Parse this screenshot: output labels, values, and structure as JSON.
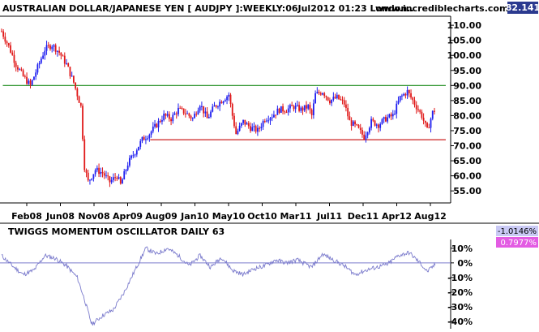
{
  "header": {
    "title": "AUSTRALIAN DOLLAR/JAPANESE YEN [ AUDJPY ]:WEEKLY:06Jul2012 01:23 London..",
    "site": "www.incrediblecharts.com",
    "last_price": "82.141"
  },
  "lower_panel": {
    "title": "TWIGGS MOMENTUM OSCILLATOR DAILY 63",
    "badge_negative": "-1.0146%",
    "badge_positive": "0.7977%"
  },
  "colors": {
    "up": "#1f1ff0",
    "down": "#e01818",
    "resistance": "#1a8a1a",
    "support": "#cc2020",
    "oscillator": "#7a7acc",
    "badge_blue": "#2b3a8f",
    "badge_lightblue": "#c9c9f5",
    "badge_pink": "#e35ce3"
  },
  "chart_data": [
    {
      "type": "candlestick",
      "title": "AUSTRALIAN DOLLAR/JAPANESE YEN [ AUDJPY ]:WEEKLY:06Jul2012 01:23 London..",
      "x_tick_labels": [
        "Feb08",
        "Jun08",
        "Nov08",
        "Apr09",
        "Aug09",
        "Jan10",
        "May10",
        "Oct10",
        "Mar11",
        "Jul11",
        "Dec11",
        "Apr12",
        "Aug12"
      ],
      "y_tick_labels": [
        "110.00",
        "105.00",
        "100.00",
        "95.00",
        "90.00",
        "85.00",
        "80.00",
        "75.00",
        "70.00",
        "65.00",
        "60.00",
        "55.00"
      ],
      "y_ticks": [
        110,
        105,
        100,
        95,
        90,
        85,
        80,
        75,
        70,
        65,
        60,
        55
      ],
      "ylim": [
        51,
        113
      ],
      "x_range_dates": [
        "2007-11-20",
        "2012-09-03"
      ],
      "last_close": 82.141,
      "horizontal_lines": [
        {
          "role": "resistance",
          "value": 90.0,
          "from": "2007-12-01",
          "to": "2012-08-15"
        },
        {
          "role": "support",
          "value": 72.0,
          "from": "2009-06-25",
          "to": "2012-08-15"
        }
      ],
      "close_path": [
        {
          "date": "2007-11-26",
          "close": 108
        },
        {
          "date": "2007-12-24",
          "close": 103
        },
        {
          "date": "2008-01-21",
          "close": 97
        },
        {
          "date": "2008-02-18",
          "close": 93
        },
        {
          "date": "2008-03-17",
          "close": 90
        },
        {
          "date": "2008-04-14",
          "close": 96
        },
        {
          "date": "2008-05-12",
          "close": 102
        },
        {
          "date": "2008-06-09",
          "close": 103.5
        },
        {
          "date": "2008-07-07",
          "close": 101
        },
        {
          "date": "2008-08-04",
          "close": 97
        },
        {
          "date": "2008-09-01",
          "close": 91
        },
        {
          "date": "2008-09-29",
          "close": 83
        },
        {
          "date": "2008-10-13",
          "close": 63
        },
        {
          "date": "2008-10-27",
          "close": 58
        },
        {
          "date": "2008-11-24",
          "close": 62
        },
        {
          "date": "2008-12-22",
          "close": 61
        },
        {
          "date": "2009-01-19",
          "close": 58
        },
        {
          "date": "2009-02-16",
          "close": 60
        },
        {
          "date": "2009-03-02",
          "close": 57
        },
        {
          "date": "2009-03-30",
          "close": 64
        },
        {
          "date": "2009-04-27",
          "close": 68
        },
        {
          "date": "2009-05-25",
          "close": 72
        },
        {
          "date": "2009-06-22",
          "close": 74
        },
        {
          "date": "2009-07-20",
          "close": 77
        },
        {
          "date": "2009-08-17",
          "close": 80
        },
        {
          "date": "2009-09-14",
          "close": 79
        },
        {
          "date": "2009-10-12",
          "close": 82
        },
        {
          "date": "2009-11-09",
          "close": 81
        },
        {
          "date": "2009-12-07",
          "close": 79
        },
        {
          "date": "2010-01-04",
          "close": 84
        },
        {
          "date": "2010-02-01",
          "close": 79
        },
        {
          "date": "2010-03-01",
          "close": 83
        },
        {
          "date": "2010-03-29",
          "close": 85
        },
        {
          "date": "2010-04-26",
          "close": 87
        },
        {
          "date": "2010-05-10",
          "close": 80
        },
        {
          "date": "2010-05-24",
          "close": 74
        },
        {
          "date": "2010-06-21",
          "close": 78
        },
        {
          "date": "2010-07-19",
          "close": 76
        },
        {
          "date": "2010-08-16",
          "close": 75
        },
        {
          "date": "2010-09-13",
          "close": 79
        },
        {
          "date": "2010-10-11",
          "close": 80
        },
        {
          "date": "2010-11-08",
          "close": 82
        },
        {
          "date": "2010-12-06",
          "close": 82
        },
        {
          "date": "2011-01-03",
          "close": 83
        },
        {
          "date": "2011-01-31",
          "close": 82
        },
        {
          "date": "2011-02-28",
          "close": 83
        },
        {
          "date": "2011-03-14",
          "close": 80
        },
        {
          "date": "2011-03-28",
          "close": 87
        },
        {
          "date": "2011-04-25",
          "close": 88
        },
        {
          "date": "2011-05-23",
          "close": 85
        },
        {
          "date": "2011-06-20",
          "close": 86
        },
        {
          "date": "2011-07-18",
          "close": 84
        },
        {
          "date": "2011-08-08",
          "close": 78
        },
        {
          "date": "2011-09-05",
          "close": 76
        },
        {
          "date": "2011-10-03",
          "close": 73
        },
        {
          "date": "2011-10-31",
          "close": 78
        },
        {
          "date": "2011-11-28",
          "close": 77
        },
        {
          "date": "2011-12-26",
          "close": 79
        },
        {
          "date": "2012-01-23",
          "close": 80
        },
        {
          "date": "2012-02-20",
          "close": 86
        },
        {
          "date": "2012-03-19",
          "close": 88
        },
        {
          "date": "2012-04-16",
          "close": 84
        },
        {
          "date": "2012-05-14",
          "close": 80
        },
        {
          "date": "2012-06-04",
          "close": 75
        },
        {
          "date": "2012-06-25",
          "close": 81
        },
        {
          "date": "2012-07-06",
          "close": 82.1
        }
      ]
    },
    {
      "type": "line",
      "title": "TWIGGS MOMENTUM OSCILLATOR DAILY 63",
      "y_tick_labels": [
        "10%",
        "0%",
        "-10%",
        "-20%",
        "-30%",
        "-40%"
      ],
      "y_ticks": [
        10,
        0,
        -10,
        -20,
        -30,
        -40
      ],
      "ylim": [
        -45,
        16
      ],
      "zero_line": 0,
      "series": [
        {
          "name": "",
          "points": [
            {
              "date": "2007-11-26",
              "value": 5
            },
            {
              "date": "2008-01-07",
              "value": -2
            },
            {
              "date": "2008-02-18",
              "value": -8
            },
            {
              "date": "2008-03-31",
              "value": -5
            },
            {
              "date": "2008-05-12",
              "value": 5
            },
            {
              "date": "2008-06-23",
              "value": 3
            },
            {
              "date": "2008-08-04",
              "value": -2
            },
            {
              "date": "2008-09-15",
              "value": -10
            },
            {
              "date": "2008-10-13",
              "value": -25
            },
            {
              "date": "2008-11-10",
              "value": -42
            },
            {
              "date": "2008-12-22",
              "value": -36
            },
            {
              "date": "2009-02-02",
              "value": -32
            },
            {
              "date": "2009-03-16",
              "value": -20
            },
            {
              "date": "2009-04-27",
              "value": -5
            },
            {
              "date": "2009-06-08",
              "value": 10
            },
            {
              "date": "2009-07-20",
              "value": 6
            },
            {
              "date": "2009-08-31",
              "value": 10
            },
            {
              "date": "2009-10-12",
              "value": 5
            },
            {
              "date": "2009-11-23",
              "value": -2
            },
            {
              "date": "2010-01-04",
              "value": 5
            },
            {
              "date": "2010-02-15",
              "value": -3
            },
            {
              "date": "2010-03-29",
              "value": 4
            },
            {
              "date": "2010-05-10",
              "value": -5
            },
            {
              "date": "2010-06-21",
              "value": -8
            },
            {
              "date": "2010-08-02",
              "value": -4
            },
            {
              "date": "2010-09-13",
              "value": -2
            },
            {
              "date": "2010-10-25",
              "value": 2
            },
            {
              "date": "2010-12-06",
              "value": 0
            },
            {
              "date": "2011-01-17",
              "value": 2
            },
            {
              "date": "2011-03-14",
              "value": -3
            },
            {
              "date": "2011-04-25",
              "value": 6
            },
            {
              "date": "2011-06-06",
              "value": 2
            },
            {
              "date": "2011-07-18",
              "value": -2
            },
            {
              "date": "2011-08-29",
              "value": -8
            },
            {
              "date": "2011-10-10",
              "value": -5
            },
            {
              "date": "2011-11-21",
              "value": -3
            },
            {
              "date": "2012-01-02",
              "value": -1
            },
            {
              "date": "2012-02-13",
              "value": 5
            },
            {
              "date": "2012-03-26",
              "value": 7
            },
            {
              "date": "2012-05-07",
              "value": 0
            },
            {
              "date": "2012-06-04",
              "value": -6
            },
            {
              "date": "2012-07-06",
              "value": -1
            }
          ]
        }
      ]
    }
  ]
}
